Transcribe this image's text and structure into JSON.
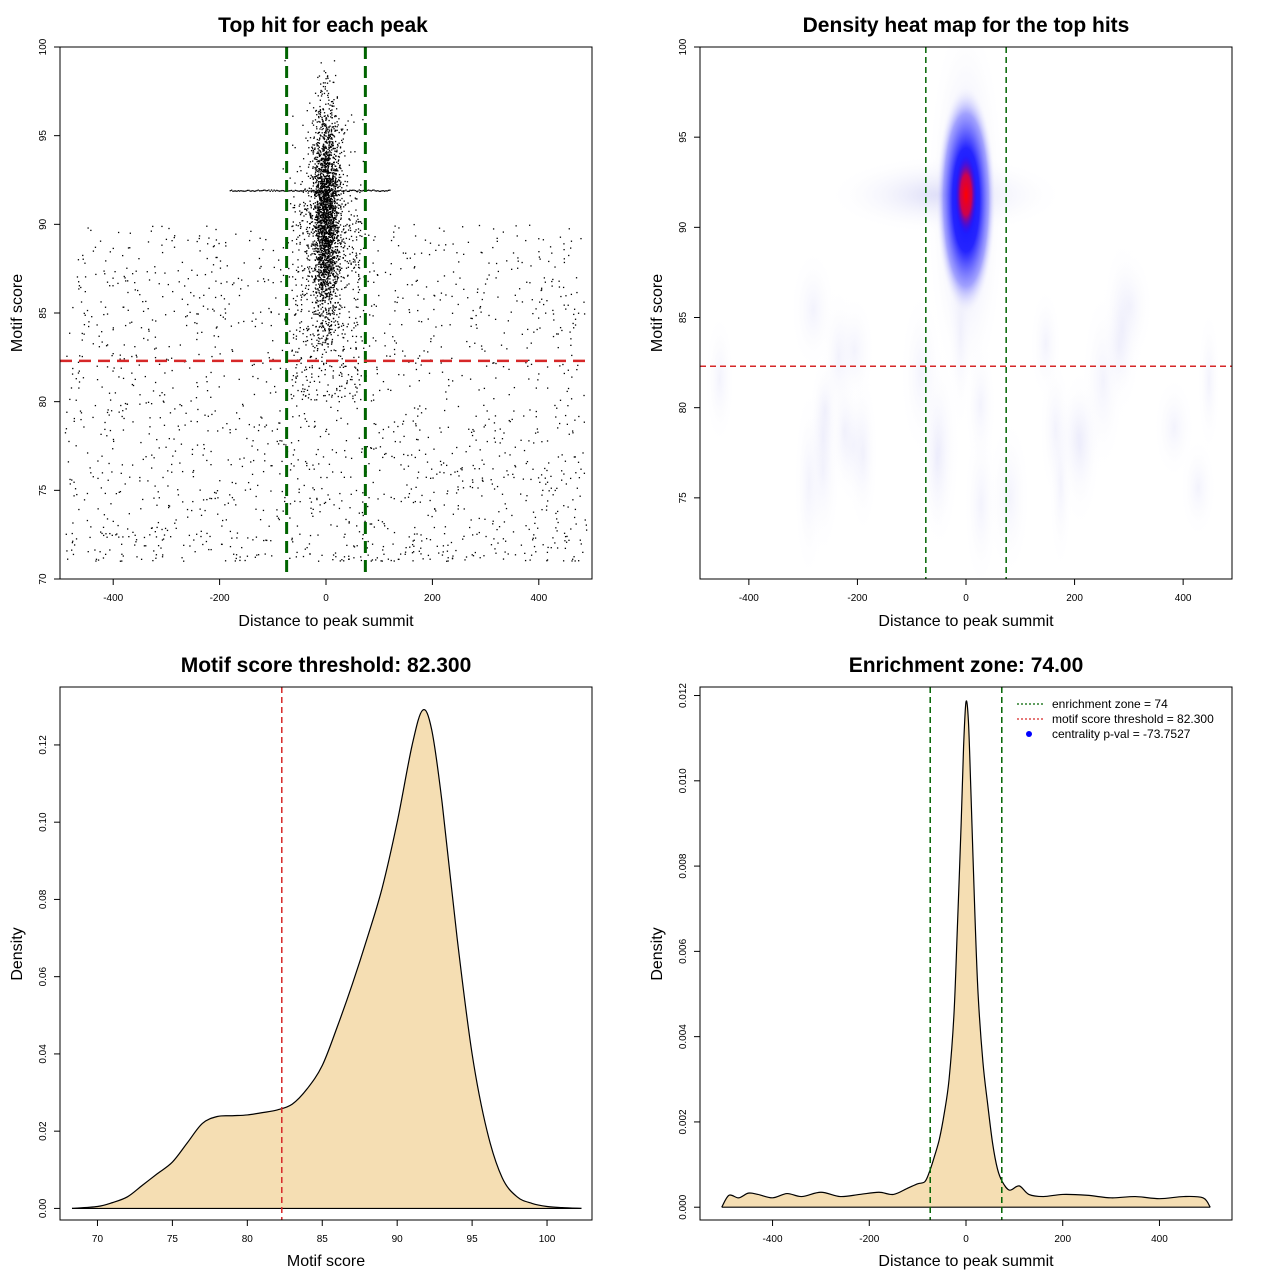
{
  "chart_data": [
    {
      "id": "scatter",
      "type": "scatter",
      "title": "Top hit for each peak",
      "xlabel": "Distance to peak summit",
      "ylabel": "Motif score",
      "xlim": [
        -500,
        500
      ],
      "ylim": [
        70,
        100
      ],
      "xticks": [
        -400,
        -200,
        0,
        200,
        400
      ],
      "yticks": [
        70,
        75,
        80,
        85,
        90,
        95,
        100
      ],
      "vlines": [
        {
          "x": -74,
          "color": "#006400"
        },
        {
          "x": 74,
          "color": "#006400"
        }
      ],
      "hlines": [
        {
          "y": 82.3,
          "color": "#d62728"
        }
      ],
      "central_cluster": {
        "x_center": 0,
        "x_spread": 12,
        "y_center": 90.5,
        "y_spread": 3.0,
        "y_min": 83,
        "y_max": 100
      },
      "band": {
        "y": 91.9,
        "x_from": -180,
        "x_to": 120
      },
      "background": {
        "x_range": [
          -490,
          490
        ],
        "y_range": [
          71,
          90
        ]
      },
      "grid": false,
      "legend": "none"
    },
    {
      "id": "heatmap",
      "type": "heatmap",
      "title": "Density heat map for the top hits",
      "xlabel": "Distance to peak summit",
      "ylabel": "Motif score",
      "xlim": [
        -490,
        490
      ],
      "ylim": [
        70.5,
        100
      ],
      "xticks": [
        -400,
        -200,
        0,
        200,
        400
      ],
      "yticks": [
        75,
        80,
        85,
        90,
        95,
        100
      ],
      "vlines": [
        {
          "x": -74,
          "color": "#006400"
        },
        {
          "x": 74,
          "color": "#006400"
        }
      ],
      "hlines": [
        {
          "y": 82.3,
          "color": "#d62728"
        }
      ],
      "peak": {
        "x": 0,
        "y": 91.8
      },
      "colors": [
        "#ffffff",
        "#0000ff",
        "#ff0000"
      ],
      "grid": false,
      "legend": "none"
    },
    {
      "id": "density-score",
      "type": "area",
      "title": "Motif score threshold: 82.300",
      "xlabel": "Motif score",
      "ylabel": "Density",
      "xlim": [
        67.5,
        103
      ],
      "ylim": [
        -0.003,
        0.135
      ],
      "xticks": [
        70,
        75,
        80,
        85,
        90,
        95,
        100
      ],
      "yticks": [
        0.0,
        0.02,
        0.04,
        0.06,
        0.08,
        0.1,
        0.12
      ],
      "ytick_labels": [
        "0.00",
        "0.02",
        "0.04",
        "0.06",
        "0.08",
        "0.10",
        "0.12"
      ],
      "fill": "#f5deb3",
      "vlines": [
        {
          "x": 82.3,
          "color": "#d62728"
        }
      ],
      "x": [
        68.3,
        70,
        71,
        72,
        73,
        74,
        75,
        76,
        77,
        78,
        79,
        80,
        81,
        82,
        83,
        84,
        85,
        86,
        87,
        88,
        89,
        90,
        91,
        91.7,
        92.3,
        93,
        94,
        95,
        96,
        97,
        98,
        99,
        100,
        101,
        102.3
      ],
      "y": [
        0.0,
        0.0005,
        0.0015,
        0.003,
        0.006,
        0.009,
        0.012,
        0.017,
        0.022,
        0.0238,
        0.024,
        0.0242,
        0.0248,
        0.0255,
        0.027,
        0.031,
        0.037,
        0.047,
        0.058,
        0.07,
        0.083,
        0.1,
        0.12,
        0.129,
        0.124,
        0.105,
        0.07,
        0.04,
        0.02,
        0.008,
        0.003,
        0.0013,
        0.0005,
        0.0002,
        0.0
      ],
      "grid": false,
      "legend": "none"
    },
    {
      "id": "density-distance",
      "type": "area",
      "title": "Enrichment zone: 74.00",
      "xlabel": "Distance to peak summit",
      "ylabel": "Density",
      "xlim": [
        -550,
        550
      ],
      "ylim": [
        -0.0003,
        0.0122
      ],
      "xticks": [
        -400,
        -200,
        0,
        200,
        400
      ],
      "yticks": [
        0.0,
        0.002,
        0.004,
        0.006,
        0.008,
        0.01,
        0.012
      ],
      "ytick_labels": [
        "0.000",
        "0.002",
        "0.004",
        "0.006",
        "0.008",
        "0.010",
        "0.012"
      ],
      "fill": "#f5deb3",
      "vlines": [
        {
          "x": -74,
          "color": "#006400"
        },
        {
          "x": 74,
          "color": "#006400"
        }
      ],
      "x": [
        -505,
        -490,
        -470,
        -450,
        -430,
        -400,
        -370,
        -340,
        -300,
        -260,
        -220,
        -180,
        -150,
        -120,
        -100,
        -85,
        -75,
        -65,
        -55,
        -45,
        -35,
        -25,
        -18,
        -10,
        -5,
        0,
        5,
        10,
        18,
        25,
        35,
        45,
        55,
        65,
        75,
        90,
        110,
        130,
        160,
        200,
        250,
        300,
        350,
        400,
        450,
        490,
        505
      ],
      "y": [
        0.0,
        0.00028,
        0.00022,
        0.00033,
        0.0003,
        0.00022,
        0.00032,
        0.00025,
        0.00035,
        0.00025,
        0.0003,
        0.00035,
        0.0003,
        0.00045,
        0.00055,
        0.0006,
        0.00085,
        0.0012,
        0.0016,
        0.0022,
        0.003,
        0.0045,
        0.0065,
        0.009,
        0.0108,
        0.01185,
        0.0114,
        0.0098,
        0.007,
        0.005,
        0.0034,
        0.0024,
        0.0015,
        0.0009,
        0.0006,
        0.0004,
        0.0005,
        0.0003,
        0.00025,
        0.0003,
        0.00028,
        0.00022,
        0.00025,
        0.0002,
        0.00025,
        0.00022,
        0.0
      ],
      "legend_entries": [
        {
          "label": "enrichment zone = 74",
          "color": "#006400",
          "style": "dotted-line"
        },
        {
          "label": "motif score threshold = 82.300",
          "color": "#d62728",
          "style": "dotted-line"
        },
        {
          "label": "centrality p-val = -73.7527",
          "color": "#0000ff",
          "style": "point"
        }
      ],
      "legend": "top-right",
      "grid": false
    }
  ]
}
